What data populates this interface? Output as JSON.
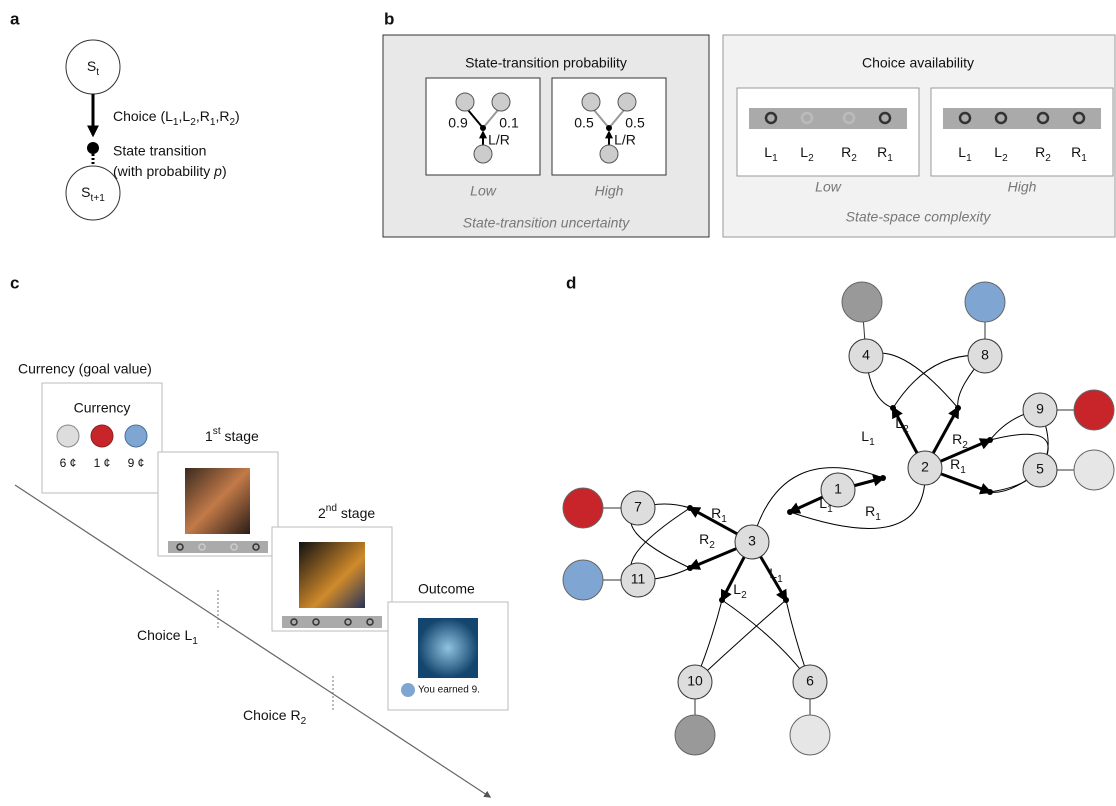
{
  "panel_a": {
    "label": "a",
    "top_node": [
      "S",
      {
        "sub": "t"
      }
    ],
    "choice": [
      "Choice (L",
      {
        "sub": "1"
      },
      ",L",
      {
        "sub": "2"
      },
      ",R",
      {
        "sub": "1"
      },
      ",R",
      {
        "sub": "2"
      },
      ")"
    ],
    "transition": "State transition",
    "probability": [
      "(with probability ",
      {
        "i": "p"
      },
      ")"
    ],
    "bottom_node": [
      "S",
      {
        "sub": "t+1"
      }
    ]
  },
  "panel_b": {
    "label": "b",
    "left": {
      "title": "State-transition probability",
      "low": {
        "p1": 0.9,
        "p2": 0.1,
        "action": "L/R",
        "caption": "Low"
      },
      "high": {
        "p1": 0.5,
        "p2": 0.5,
        "action": "L/R",
        "caption": "High"
      },
      "footer": "State-transition uncertainty"
    },
    "right": {
      "title": "Choice availability",
      "low": {
        "choices": [
          [
            "L",
            {
              "sub": "1"
            }
          ],
          [
            "L",
            {
              "sub": "2"
            }
          ],
          [
            "R",
            {
              "sub": "2"
            }
          ],
          [
            "R",
            {
              "sub": "1"
            }
          ]
        ],
        "caption": "Low"
      },
      "high": {
        "choices": [
          [
            "L",
            {
              "sub": "1"
            }
          ],
          [
            "L",
            {
              "sub": "2"
            }
          ],
          [
            "R",
            {
              "sub": "2"
            }
          ],
          [
            "R",
            {
              "sub": "1"
            }
          ]
        ],
        "caption": "High"
      },
      "footer": "State-space complexity"
    }
  },
  "panel_c": {
    "label": "c",
    "currency_heading": "Currency (goal value)",
    "currency_card": "Currency",
    "values": [
      "6 ¢",
      "1 ¢",
      "9 ¢"
    ],
    "stage1": [
      "1",
      {
        "sup": "st"
      },
      " stage"
    ],
    "stage2": [
      "2",
      {
        "sup": "nd"
      },
      " stage"
    ],
    "outcome": "Outcome",
    "outcome_text": "You earned 9.",
    "choice1": [
      "Choice L",
      {
        "sub": "1"
      }
    ],
    "choice2": [
      "Choice R",
      {
        "sub": "2"
      }
    ]
  },
  "panel_d": {
    "label": "d",
    "nodes": [
      "1",
      "2",
      "3",
      "4",
      "5",
      "6",
      "7",
      "8",
      "9",
      "10",
      "11"
    ],
    "edge_labels": [
      [
        "L",
        {
          "sub": "1"
        }
      ],
      [
        "L",
        {
          "sub": "2"
        }
      ],
      [
        "R",
        {
          "sub": "2"
        }
      ],
      [
        "R",
        {
          "sub": "1"
        }
      ],
      [
        "R",
        {
          "sub": "1"
        }
      ],
      [
        "L",
        {
          "sub": "1"
        }
      ],
      [
        "R",
        {
          "sub": "1"
        }
      ],
      [
        "R",
        {
          "sub": "2"
        }
      ],
      [
        "L",
        {
          "sub": "1"
        }
      ],
      [
        "L",
        {
          "sub": "2"
        }
      ]
    ]
  }
}
